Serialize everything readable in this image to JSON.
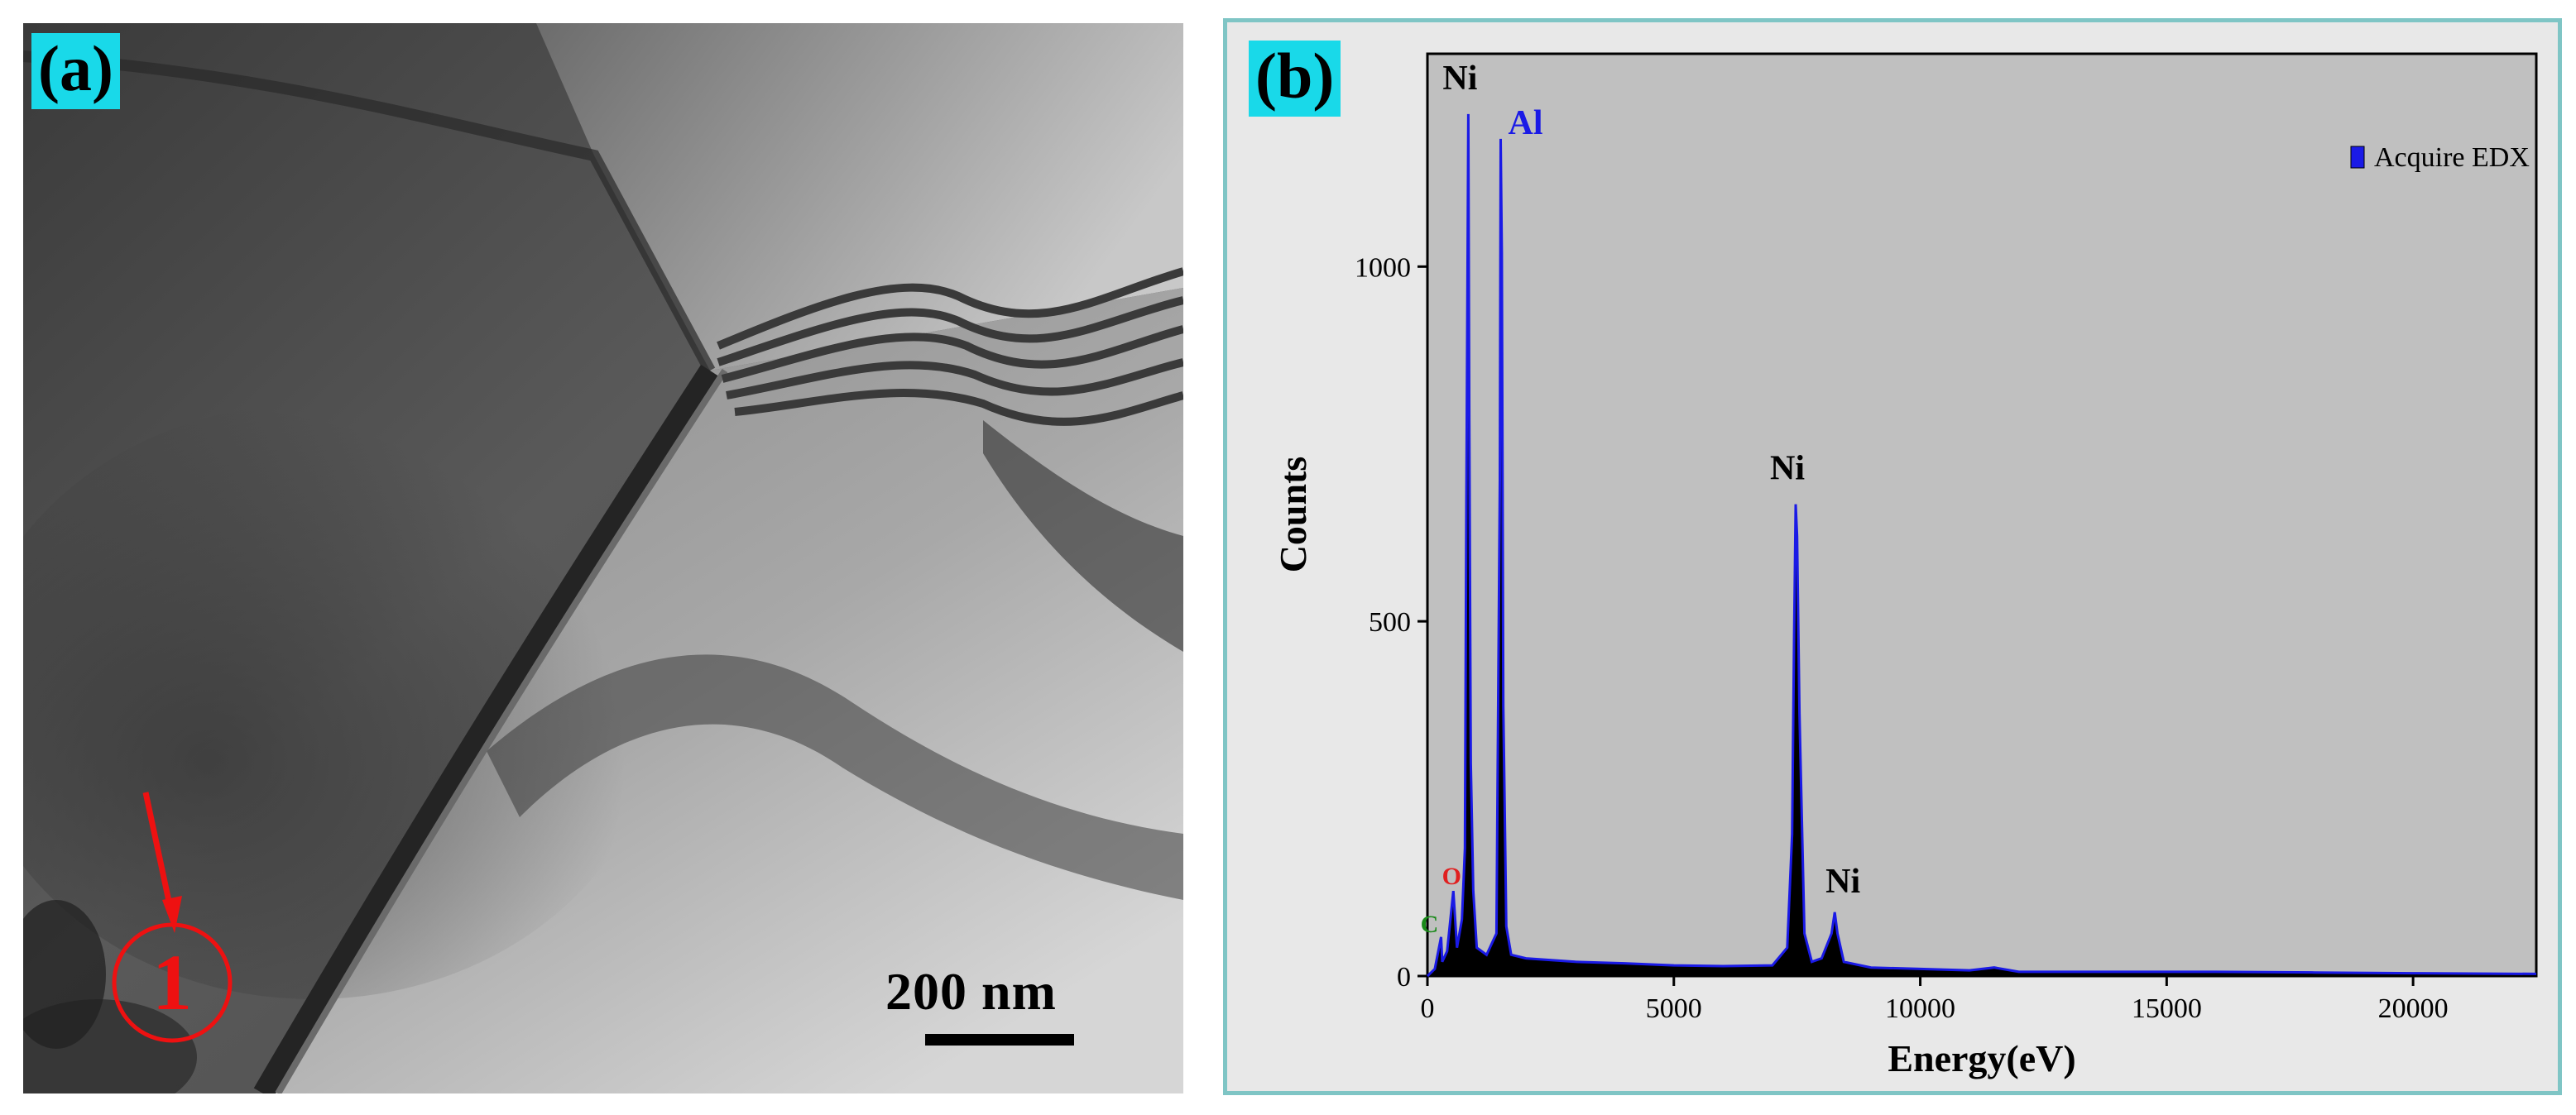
{
  "panel_a": {
    "label": "(a)",
    "scale_bar_label": "200 nm",
    "marker_label": "1",
    "colors": {
      "marker": "#ee1111"
    }
  },
  "panel_b": {
    "label": "(b)"
  },
  "chart_data": {
    "type": "line",
    "title": "",
    "xlabel": "Energy(eV)",
    "ylabel": "Counts",
    "xlim": [
      0,
      22500
    ],
    "ylim": [
      0,
      1300
    ],
    "xticks": [
      0,
      5000,
      10000,
      15000,
      20000
    ],
    "yticks": [
      0,
      500,
      1000
    ],
    "grid": false,
    "legend": {
      "position": "top-right",
      "entries": [
        "Acquire EDX"
      ]
    },
    "series": [
      {
        "name": "Acquire EDX",
        "color": "#1a1ae6",
        "points": [
          [
            0,
            0
          ],
          [
            150,
            10
          ],
          [
            277,
            55
          ],
          [
            300,
            20
          ],
          [
            400,
            35
          ],
          [
            525,
            120
          ],
          [
            600,
            40
          ],
          [
            700,
            80
          ],
          [
            760,
            180
          ],
          [
            790,
            660
          ],
          [
            830,
            1215
          ],
          [
            850,
            780
          ],
          [
            880,
            300
          ],
          [
            930,
            120
          ],
          [
            1000,
            40
          ],
          [
            1200,
            30
          ],
          [
            1400,
            60
          ],
          [
            1470,
            700
          ],
          [
            1486,
            1180
          ],
          [
            1510,
            1020
          ],
          [
            1540,
            380
          ],
          [
            1600,
            70
          ],
          [
            1700,
            30
          ],
          [
            2000,
            25
          ],
          [
            3000,
            20
          ],
          [
            4000,
            18
          ],
          [
            5000,
            15
          ],
          [
            6000,
            14
          ],
          [
            7000,
            15
          ],
          [
            7300,
            40
          ],
          [
            7400,
            200
          ],
          [
            7440,
            480
          ],
          [
            7472,
            665
          ],
          [
            7500,
            620
          ],
          [
            7550,
            370
          ],
          [
            7650,
            60
          ],
          [
            7800,
            20
          ],
          [
            8000,
            25
          ],
          [
            8200,
            60
          ],
          [
            8264,
            90
          ],
          [
            8320,
            60
          ],
          [
            8450,
            20
          ],
          [
            9000,
            12
          ],
          [
            10000,
            10
          ],
          [
            11000,
            8
          ],
          [
            11500,
            12
          ],
          [
            12000,
            6
          ],
          [
            14000,
            6
          ],
          [
            16000,
            6
          ],
          [
            18000,
            5
          ],
          [
            20000,
            4
          ],
          [
            22500,
            3
          ]
        ]
      }
    ],
    "annotations": [
      {
        "text": "Ni",
        "x": 830,
        "y": 1215,
        "color": "#000000"
      },
      {
        "text": "Al",
        "x": 1486,
        "y": 1180,
        "color": "#1a1ae6"
      },
      {
        "text": "Ni",
        "x": 7472,
        "y": 665,
        "color": "#000000"
      },
      {
        "text": "Ni",
        "x": 8264,
        "y": 90,
        "color": "#000000"
      },
      {
        "text": "O",
        "x": 525,
        "y": 120,
        "color": "#e02020"
      },
      {
        "text": "C",
        "x": 277,
        "y": 55,
        "color": "#1a8a1a"
      }
    ]
  }
}
